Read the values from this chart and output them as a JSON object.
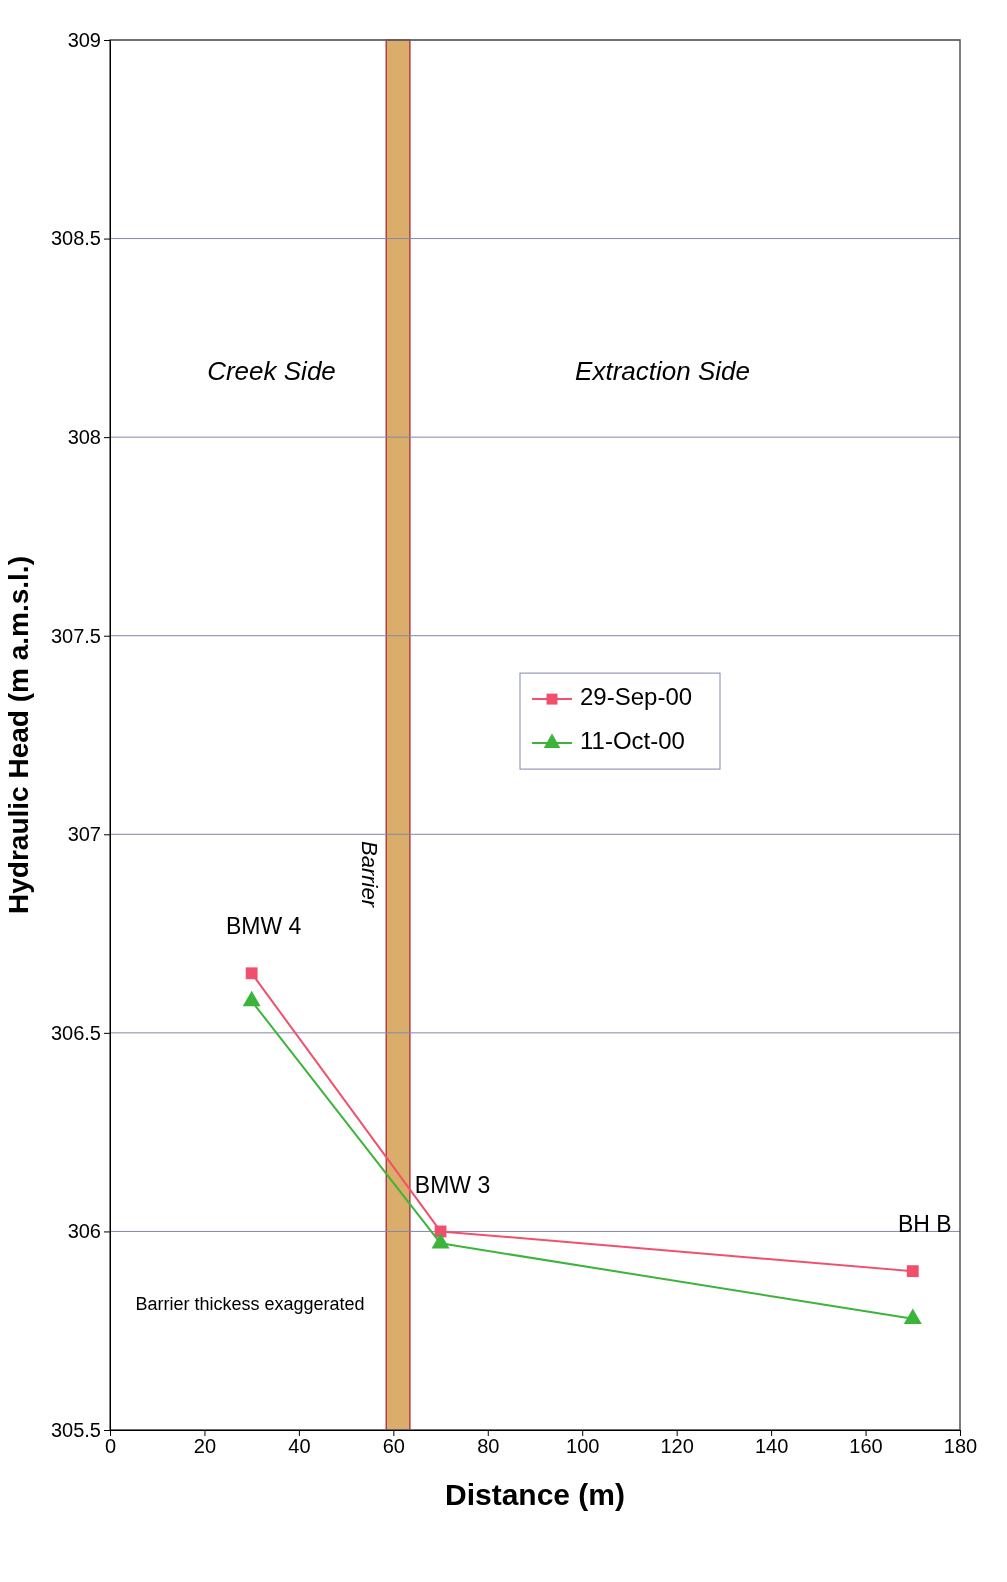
{
  "chart_data": {
    "type": "line",
    "xlabel": "Distance (m)",
    "ylabel": "Hydraulic Head (m a.m.s.l.)",
    "xlim": [
      0,
      180
    ],
    "xticks": [
      0,
      20,
      40,
      60,
      80,
      100,
      120,
      140,
      160,
      180
    ],
    "ylim": [
      305.5,
      309
    ],
    "yticks": [
      305.5,
      306,
      306.5,
      307,
      307.5,
      308,
      308.5,
      309
    ],
    "grid": "y",
    "legend": "top",
    "line_style": "solid",
    "series": [
      {
        "name": "29-Sep-00",
        "color": "#f0506e",
        "marker": "square",
        "x": [
          30,
          70,
          170
        ],
        "values": [
          306.65,
          306.0,
          305.9
        ]
      },
      {
        "name": "11-Oct-00",
        "color": "#3cb43c",
        "marker": "triangle",
        "x": [
          30,
          70,
          170
        ],
        "values": [
          306.58,
          305.97,
          305.78
        ]
      }
    ],
    "bands": [
      {
        "axis": "x",
        "from": 58.5,
        "to": 63.5,
        "label": "Barrier",
        "color": "#d4a050"
      }
    ],
    "annotations": [
      "Creek Side",
      "Extraction Side",
      {
        "text": "BMW 4",
        "x": 30,
        "y": 306.65
      },
      {
        "text": "BMW 3",
        "x": 70,
        "y": 306.0
      },
      {
        "text": "BH B",
        "x": 170,
        "y": 305.9
      },
      "Barrier thickess exaggerated"
    ]
  }
}
